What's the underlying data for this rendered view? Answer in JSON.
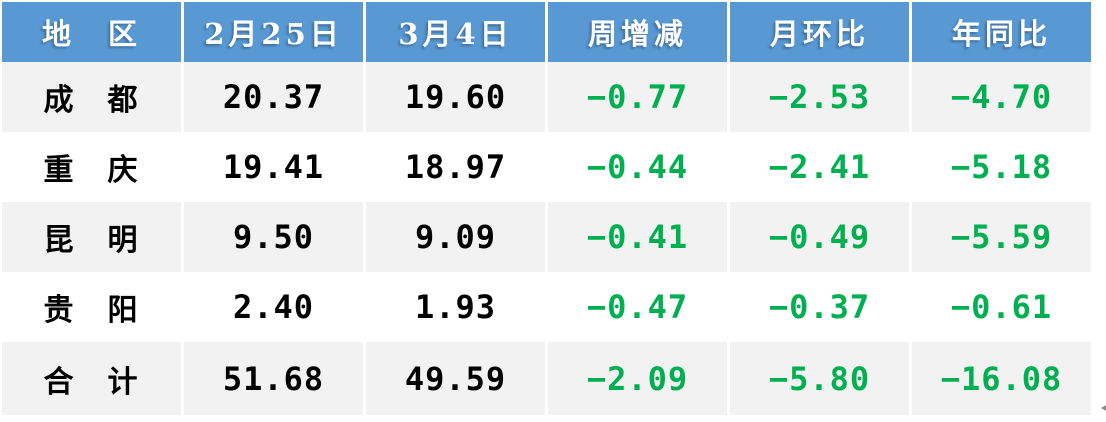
{
  "colors": {
    "header_bg": "#5899D4",
    "header_text": "#FFFFFF",
    "row_alt_bg": "#F2F2F2",
    "row_bg": "#FFFFFF",
    "value_text": "#000000",
    "negative_value_text": "#00B050"
  },
  "table": {
    "columns": [
      {
        "key": "region",
        "label": "地　区"
      },
      {
        "key": "feb25",
        "label": "2月25日"
      },
      {
        "key": "mar4",
        "label": "3月4日"
      },
      {
        "key": "week_change",
        "label": "周增减"
      },
      {
        "key": "month_on_month",
        "label": "月环比"
      },
      {
        "key": "year_on_year",
        "label": "年同比"
      }
    ],
    "rows": [
      {
        "key": "chengdu",
        "cells": [
          "成　都",
          "20.37",
          "19.60",
          "−0.77",
          "−2.53",
          "−4.70"
        ]
      },
      {
        "key": "chongqing",
        "cells": [
          "重　庆",
          "19.41",
          "18.97",
          "−0.44",
          "−2.41",
          "−5.18"
        ]
      },
      {
        "key": "kunming",
        "cells": [
          "昆　明",
          "9.50",
          "9.09",
          "−0.41",
          "−0.49",
          "−5.59"
        ]
      },
      {
        "key": "guiyang",
        "cells": [
          "贵　阳",
          "2.40",
          "1.93",
          "−0.47",
          "−0.37",
          "−0.61"
        ]
      },
      {
        "key": "total",
        "cells": [
          "合　计",
          "51.68",
          "49.59",
          "−2.09",
          "−5.80",
          "−16.08"
        ]
      }
    ]
  },
  "chart_data": {
    "type": "table",
    "title": "",
    "columns": [
      "地区",
      "2月25日",
      "3月4日",
      "周增减",
      "月环比",
      "年同比"
    ],
    "row_labels": [
      "成都",
      "重庆",
      "昆明",
      "贵阳",
      "合计"
    ],
    "series": [
      {
        "name": "2月25日",
        "values": [
          20.37,
          19.41,
          9.5,
          2.4,
          51.68
        ]
      },
      {
        "name": "3月4日",
        "values": [
          19.6,
          18.97,
          9.09,
          1.93,
          49.59
        ]
      },
      {
        "name": "周增减",
        "values": [
          -0.77,
          -0.44,
          -0.41,
          -0.47,
          -2.09
        ]
      },
      {
        "name": "月环比",
        "values": [
          -2.53,
          -2.41,
          -0.49,
          -0.37,
          -5.8
        ]
      },
      {
        "name": "年同比",
        "values": [
          -4.7,
          -5.18,
          -5.59,
          -0.61,
          -16.08
        ]
      }
    ],
    "layout": {
      "header_style": "blue banner, white text",
      "zebra_rows": true,
      "negative_values_colored": "#00B050"
    }
  },
  "icons": {
    "bottom_right_mark": "left-arrowhead"
  }
}
